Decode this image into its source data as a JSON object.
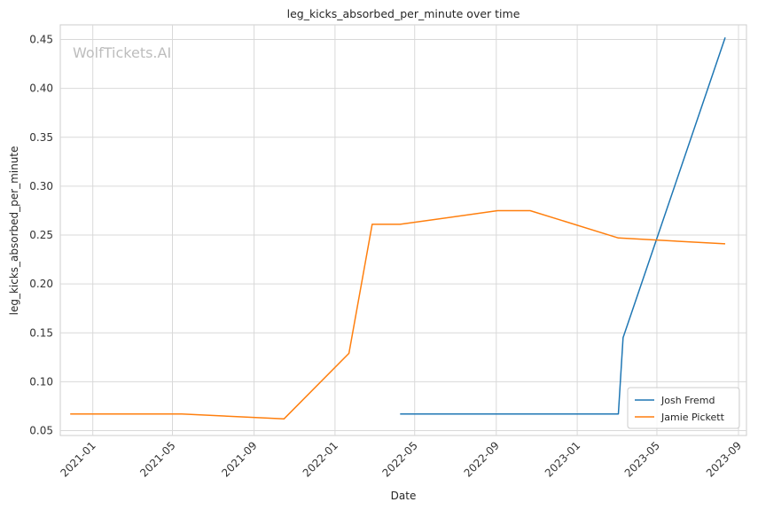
{
  "watermark": "WolfTickets.AI",
  "chart_data": {
    "type": "line",
    "title": "leg_kicks_absorbed_per_minute over time",
    "xlabel": "Date",
    "ylabel": "leg_kicks_absorbed_per_minute",
    "x_range": [
      "2020-11-13",
      "2023-09-13"
    ],
    "ylim": [
      0.045,
      0.465
    ],
    "x_ticks": [
      "2021-01",
      "2021-05",
      "2021-09",
      "2022-01",
      "2022-05",
      "2022-09",
      "2023-01",
      "2023-05",
      "2023-09"
    ],
    "x_tick_dates": [
      "2021-01-01",
      "2021-05-01",
      "2021-09-01",
      "2022-01-01",
      "2022-05-01",
      "2022-09-01",
      "2023-01-01",
      "2023-05-01",
      "2023-09-01"
    ],
    "y_ticks": [
      0.05,
      0.1,
      0.15,
      0.2,
      0.25,
      0.3,
      0.35,
      0.4,
      0.45
    ],
    "y_tick_labels": [
      "0.05",
      "0.10",
      "0.15",
      "0.20",
      "0.25",
      "0.30",
      "0.35",
      "0.40",
      "0.45"
    ],
    "grid": true,
    "legend_position": "lower-right",
    "series": [
      {
        "name": "Josh Fremd",
        "color": "#1f77b4",
        "x": [
          "2022-04-09",
          "2023-03-04",
          "2023-03-11",
          "2023-08-12"
        ],
        "y": [
          0.067,
          0.067,
          0.145,
          0.452
        ]
      },
      {
        "name": "Jamie Pickett",
        "color": "#ff7f0e",
        "x": [
          "2020-11-28",
          "2021-05-15",
          "2021-10-16",
          "2022-01-22",
          "2022-02-26",
          "2022-04-09",
          "2022-09-03",
          "2022-10-22",
          "2023-03-04",
          "2023-08-12"
        ],
        "y": [
          0.067,
          0.067,
          0.062,
          0.129,
          0.261,
          0.261,
          0.275,
          0.275,
          0.247,
          0.241
        ]
      }
    ]
  }
}
